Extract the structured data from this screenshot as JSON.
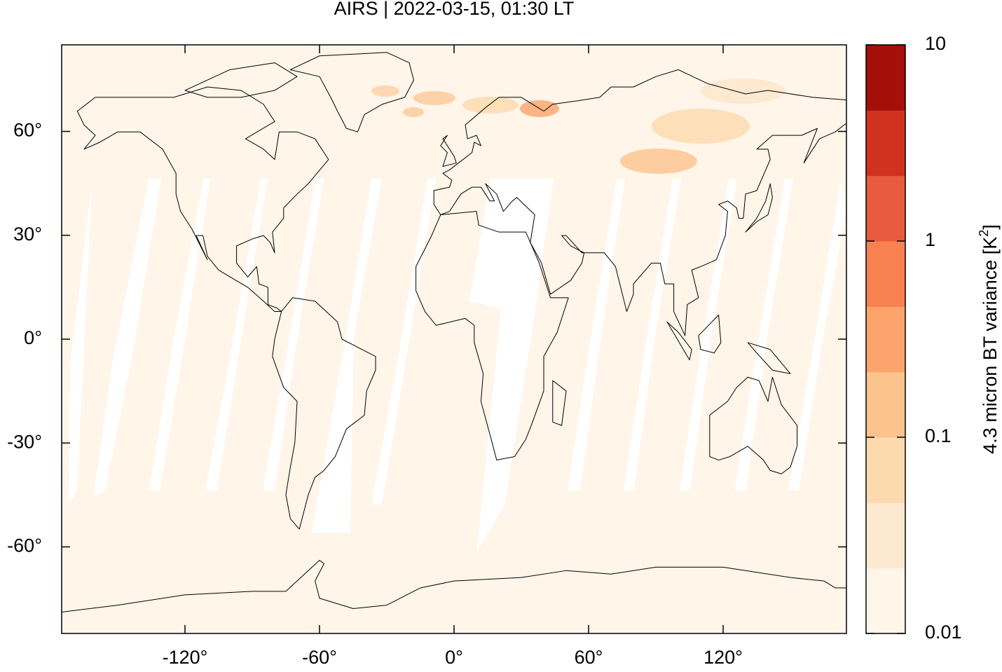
{
  "title": "AIRS | 2022-03-15, 01:30 LT",
  "map": {
    "xlim": [
      -175,
      175
    ],
    "ylim": [
      -85,
      85
    ],
    "xticks": [
      {
        "value": -120,
        "label": "-120°"
      },
      {
        "value": -60,
        "label": "-60°"
      },
      {
        "value": 0,
        "label": "0°"
      },
      {
        "value": 60,
        "label": "60°"
      },
      {
        "value": 120,
        "label": "120°"
      }
    ],
    "yticks": [
      {
        "value": 60,
        "label": "60°"
      },
      {
        "value": 30,
        "label": "30°"
      },
      {
        "value": 0,
        "label": "0°"
      },
      {
        "value": -30,
        "label": "-30°"
      },
      {
        "value": -60,
        "label": "-60°"
      }
    ]
  },
  "colorbar": {
    "lim": [
      0.01,
      10
    ],
    "log": true,
    "ticks": [
      0.01,
      0.1,
      1,
      10
    ],
    "colors": [
      "#fff5e9",
      "#fde9d0",
      "#fcd9ae",
      "#fcc38c",
      "#fca46c",
      "#f88151",
      "#e85b3e",
      "#d1321f",
      "#a50f0a"
    ],
    "label": {
      "text": "4.3 micron BT variance [K",
      "sup": "2",
      "end": "]"
    }
  }
}
